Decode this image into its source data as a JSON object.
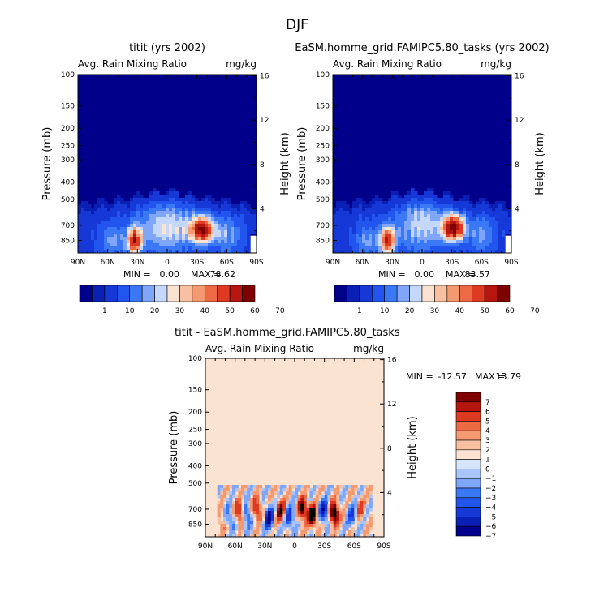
{
  "figure": {
    "title": "DJF"
  },
  "colors": {
    "panel1_2_levels": [
      "#00008b",
      "#0a1fb4",
      "#1638d6",
      "#2255ee",
      "#3a78f5",
      "#7fa6f8",
      "#c4d8fb",
      "#fbe3d1",
      "#f8c0a0",
      "#f49a70",
      "#ee6a45",
      "#de3a22",
      "#b5160f",
      "#7e0000"
    ],
    "diff_levels": [
      "#00008b",
      "#0a1fb4",
      "#1638d6",
      "#2255ee",
      "#3a78f5",
      "#7fa6f8",
      "#a9c5fa",
      "#d6e5fc",
      "#fbe3d1",
      "#f8c0a0",
      "#f49a70",
      "#ee6a45",
      "#de3a22",
      "#b5160f",
      "#7e0000"
    ]
  },
  "chart_data": [
    {
      "type": "heatmap",
      "id": "panel-1",
      "title": "titit (yrs 2002)",
      "left_label": "Avg. Rain Mixing Ratio",
      "right_label": "mg/kg",
      "ylabel": "Pressure (mb)",
      "y2label": "Height (km)",
      "xticks": [
        "90N",
        "60N",
        "30N",
        "0",
        "30S",
        "60S",
        "90S"
      ],
      "yticks": [
        100,
        150,
        200,
        250,
        300,
        400,
        500,
        700,
        850
      ],
      "y2ticks": [
        16,
        12,
        8,
        4
      ],
      "ylim": [
        100,
        1000
      ],
      "stats": {
        "min_label": "MIN =",
        "min": "0.00",
        "max_label": "MAX =",
        "max": "78.62"
      },
      "colorbar": {
        "orientation": "horizontal",
        "labels": [
          "1",
          "10",
          "20",
          "30",
          "40",
          "50",
          "60",
          "70"
        ]
      },
      "blobs": [
        {
          "lat": -35,
          "p": 740,
          "value": 72,
          "wlat": 11,
          "wlogp": 0.065
        },
        {
          "lat": 33,
          "p": 850,
          "value": 62,
          "wlat": 7,
          "wlogp": 0.07
        },
        {
          "lat": 0,
          "p": 720,
          "value": 24,
          "wlat": 28,
          "wlogp": 0.13
        },
        {
          "lat": -60,
          "p": 790,
          "value": 16,
          "wlat": 13,
          "wlogp": 0.1
        },
        {
          "lat": 55,
          "p": 850,
          "value": 15,
          "wlat": 12,
          "wlogp": 0.08
        }
      ]
    },
    {
      "type": "heatmap",
      "id": "panel-2",
      "title": "EaSM.homme_grid.FAMIPC5.80_tasks (yrs 2002)",
      "left_label": "Avg. Rain Mixing Ratio",
      "right_label": "mg/kg",
      "ylabel": "Pressure (mb)",
      "y2label": "Height (km)",
      "xticks": [
        "90N",
        "60N",
        "30N",
        "0",
        "30S",
        "60S",
        "90S"
      ],
      "yticks": [
        100,
        150,
        200,
        250,
        300,
        400,
        500,
        700,
        850
      ],
      "y2ticks": [
        16,
        12,
        8,
        4
      ],
      "ylim": [
        100,
        1000
      ],
      "stats": {
        "min_label": "MIN =",
        "min": "0.00",
        "max_label": "MAX =",
        "max": "83.57"
      },
      "colorbar": {
        "orientation": "horizontal",
        "labels": [
          "1",
          "10",
          "20",
          "30",
          "40",
          "50",
          "60",
          "70"
        ]
      },
      "blobs": [
        {
          "lat": -32,
          "p": 720,
          "value": 78,
          "wlat": 10,
          "wlogp": 0.065
        },
        {
          "lat": 35,
          "p": 850,
          "value": 60,
          "wlat": 7,
          "wlogp": 0.07
        },
        {
          "lat": 0,
          "p": 700,
          "value": 22,
          "wlat": 26,
          "wlogp": 0.13
        },
        {
          "lat": -60,
          "p": 790,
          "value": 15,
          "wlat": 12,
          "wlogp": 0.1
        },
        {
          "lat": 55,
          "p": 850,
          "value": 15,
          "wlat": 12,
          "wlogp": 0.08
        }
      ]
    },
    {
      "type": "heatmap",
      "id": "panel-diff",
      "title": "titit - EaSM.homme_grid.FAMIPC5.80_tasks",
      "left_label": "Avg. Rain Mixing Ratio",
      "right_label": "mg/kg",
      "ylabel": "Pressure (mb)",
      "y2label": "Height (km)",
      "xticks": [
        "90N",
        "60N",
        "30N",
        "0",
        "30S",
        "60S",
        "90S"
      ],
      "yticks": [
        100,
        150,
        200,
        250,
        300,
        400,
        500,
        700,
        850
      ],
      "y2ticks": [
        16,
        12,
        8,
        4
      ],
      "ylim": [
        100,
        1000
      ],
      "stats": {
        "min_label": "MIN =",
        "min": "-12.57",
        "max_label": "MAX =",
        "max": "13.79"
      },
      "colorbar": {
        "orientation": "vertical",
        "labels": [
          "7",
          "6",
          "5",
          "4",
          "3",
          "2",
          "1",
          "0",
          "−1",
          "−2",
          "−3",
          "−4",
          "−5",
          "−6",
          "−7"
        ]
      },
      "anomalies": [
        {
          "lat": -40,
          "p": 740,
          "value": 9
        },
        {
          "lat": -30,
          "p": 720,
          "value": -6
        },
        {
          "lat": -18,
          "p": 760,
          "value": 8
        },
        {
          "lat": -8,
          "p": 700,
          "value": 7
        },
        {
          "lat": 5,
          "p": 780,
          "value": -5
        },
        {
          "lat": 14,
          "p": 720,
          "value": 6
        },
        {
          "lat": 26,
          "p": 780,
          "value": -7
        },
        {
          "lat": 38,
          "p": 700,
          "value": 5
        },
        {
          "lat": 48,
          "p": 760,
          "value": -4
        },
        {
          "lat": 56,
          "p": 730,
          "value": 5
        },
        {
          "lat": 65,
          "p": 790,
          "value": -3
        },
        {
          "lat": -58,
          "p": 760,
          "value": -4
        },
        {
          "lat": -66,
          "p": 700,
          "value": 3
        },
        {
          "lat": 74,
          "p": 850,
          "value": 2
        }
      ]
    }
  ]
}
